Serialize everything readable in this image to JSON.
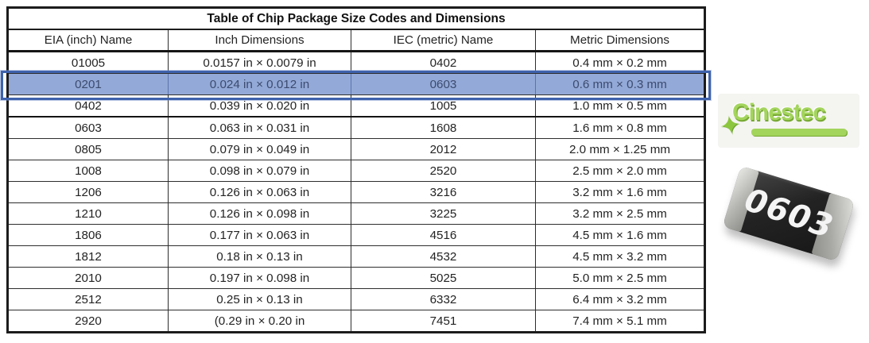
{
  "table": {
    "title": "Table of Chip Package Size Codes and Dimensions",
    "columns": [
      "EIA (inch) Name",
      "Inch Dimensions",
      "IEC (metric) Name",
      "Metric Dimensions"
    ],
    "rows": [
      {
        "eia": "01005",
        "inch": "0.0157 in × 0.0079 in",
        "iec": "0402",
        "metric": "0.4 mm × 0.2 mm"
      },
      {
        "eia": "0201",
        "inch": "0.024 in × 0.012 in",
        "iec": "0603",
        "metric": "0.6 mm × 0.3 mm",
        "highlighted": true
      },
      {
        "eia": "0402",
        "inch": "0.039 in × 0.020 in",
        "iec": "1005",
        "metric": "1.0 mm × 0.5 mm",
        "group_end": true
      },
      {
        "eia": "0603",
        "inch": "0.063 in × 0.031 in",
        "iec": "1608",
        "metric": "1.6 mm × 0.8 mm"
      },
      {
        "eia": "0805",
        "inch": "0.079 in × 0.049 in",
        "iec": "2012",
        "metric": "2.0 mm × 1.25 mm"
      },
      {
        "eia": "1008",
        "inch": "0.098 in × 0.079 in",
        "iec": "2520",
        "metric": "2.5 mm × 2.0 mm"
      },
      {
        "eia": "1206",
        "inch": "0.126 in × 0.063 in",
        "iec": "3216",
        "metric": "3.2 mm × 1.6 mm"
      },
      {
        "eia": "1210",
        "inch": "0.126 in × 0.098 in",
        "iec": "3225",
        "metric": "3.2 mm × 2.5 mm"
      },
      {
        "eia": "1806",
        "inch": "0.177 in × 0.063 in",
        "iec": "4516",
        "metric": "4.5 mm × 1.6 mm"
      },
      {
        "eia": "1812",
        "inch": "0.18 in × 0.13 in",
        "iec": "4532",
        "metric": "4.5 mm × 3.2 mm"
      },
      {
        "eia": "2010",
        "inch": "0.197 in × 0.098 in",
        "iec": "5025",
        "metric": "5.0 mm × 2.5 mm"
      },
      {
        "eia": "2512",
        "inch": "0.25 in × 0.13 in",
        "iec": "6332",
        "metric": "6.4 mm × 3.2 mm"
      },
      {
        "eia": "2920",
        "inch": "(0.29 in × 0.20 in",
        "iec": "7451",
        "metric": "7.4 mm × 5.1 mm"
      }
    ]
  },
  "logo": {
    "name": "Cinestec",
    "star_icon": "✦"
  },
  "chip": {
    "label": "0603"
  },
  "colors": {
    "highlight_fill": "#93a9d7",
    "highlight_border": "#3e62ac",
    "logo_green": "#8cc63f"
  }
}
